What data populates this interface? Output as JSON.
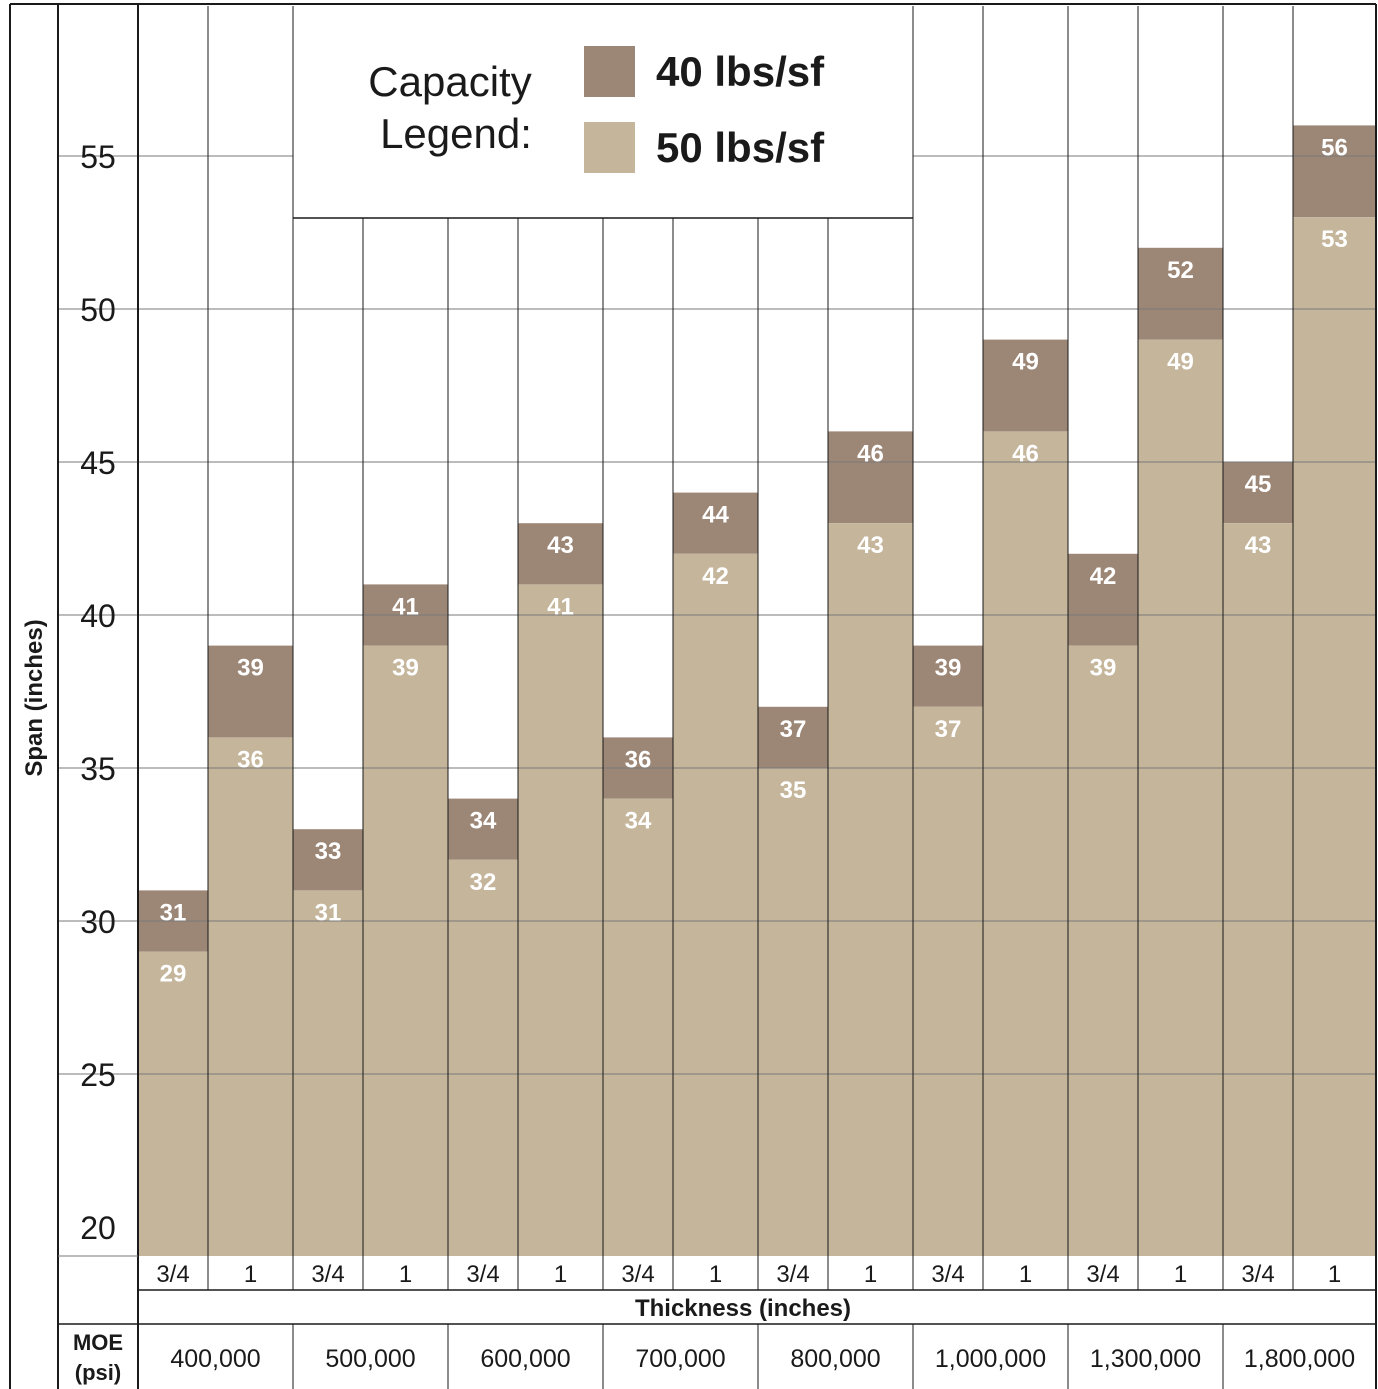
{
  "chart_data": {
    "type": "bar",
    "ylabel": "Span (inches)",
    "xlabel": "Thickness (inches)",
    "ylim": [
      19,
      57
    ],
    "yticks": [
      20,
      25,
      30,
      35,
      40,
      45,
      50,
      55
    ],
    "grid": true,
    "legend": {
      "placement": "top-center",
      "title_line1": "Capacity",
      "title_line2": "Legend:",
      "entries": [
        {
          "label": "40 lbs/sf",
          "color": "#9c8676"
        },
        {
          "label": "50 lbs/sf",
          "color": "#c4b59b"
        }
      ]
    },
    "thickness_labels": [
      "3/4",
      "1",
      "3/4",
      "1",
      "3/4",
      "1",
      "3/4",
      "1",
      "3/4",
      "1",
      "3/4",
      "1",
      "3/4",
      "1",
      "3/4",
      "1"
    ],
    "moe": {
      "label_line1": "MOE",
      "label_line2": "(psi)",
      "groups": [
        "400,000",
        "500,000",
        "600,000",
        "700,000",
        "800,000",
        "1,000,000",
        "1,300,000",
        "1,800,000"
      ]
    },
    "series": [
      {
        "name": "40 lbs/sf",
        "color": "#9c8676",
        "values": [
          31,
          39,
          33,
          41,
          34,
          43,
          36,
          44,
          37,
          46,
          39,
          49,
          42,
          52,
          45,
          56
        ]
      },
      {
        "name": "50 lbs/sf",
        "color": "#c4b59b",
        "values": [
          29,
          36,
          31,
          39,
          32,
          41,
          34,
          42,
          35,
          43,
          37,
          46,
          39,
          49,
          43,
          53
        ]
      }
    ]
  }
}
